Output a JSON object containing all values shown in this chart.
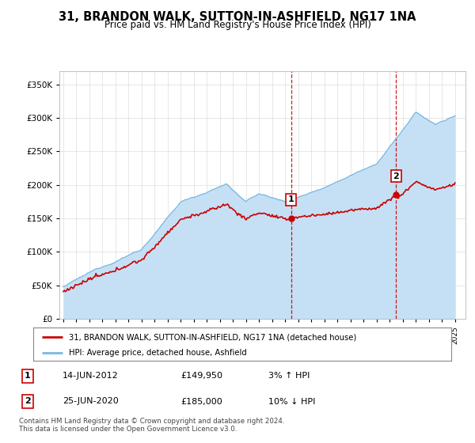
{
  "title": "31, BRANDON WALK, SUTTON-IN-ASHFIELD, NG17 1NA",
  "subtitle": "Price paid vs. HM Land Registry's House Price Index (HPI)",
  "ylim": [
    0,
    370000
  ],
  "yticks": [
    0,
    50000,
    100000,
    150000,
    200000,
    250000,
    300000,
    350000
  ],
  "hpi_fill_color": "#c5e0f5",
  "hpi_line_color": "#7ab8e0",
  "price_color": "#cc0000",
  "marker1_x": 2012.45,
  "marker1_y": 149950,
  "marker2_x": 2020.48,
  "marker2_y": 185000,
  "vline1_x": 2012.45,
  "vline2_x": 2020.48,
  "legend_price_label": "31, BRANDON WALK, SUTTON-IN-ASHFIELD, NG17 1NA (detached house)",
  "legend_hpi_label": "HPI: Average price, detached house, Ashfield",
  "table_rows": [
    {
      "marker": "1",
      "date": "14-JUN-2012",
      "price": "£149,950",
      "hpi": "3% ↑ HPI"
    },
    {
      "marker": "2",
      "date": "25-JUN-2020",
      "price": "£185,000",
      "hpi": "10% ↓ HPI"
    }
  ],
  "footnote": "Contains HM Land Registry data © Crown copyright and database right 2024.\nThis data is licensed under the Open Government Licence v3.0.",
  "background_color": "#ffffff",
  "grid_color": "#dddddd",
  "xlim_left": 1994.7,
  "xlim_right": 2025.8
}
